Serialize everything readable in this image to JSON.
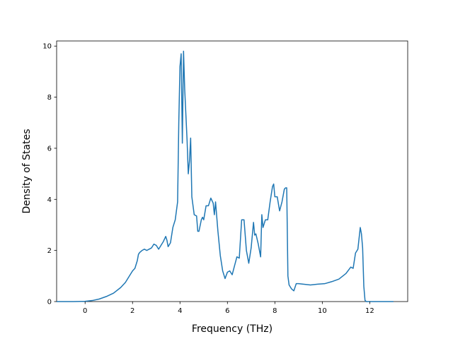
{
  "chart_data": {
    "type": "line",
    "title": "",
    "xlabel": "Frequency (THz)",
    "ylabel": "Density of States",
    "xlim": [
      -1.2,
      13.6
    ],
    "ylim": [
      0,
      10.2
    ],
    "xticks": [
      0,
      2,
      4,
      6,
      8,
      10,
      12
    ],
    "yticks": [
      0,
      2,
      4,
      6,
      8,
      10
    ],
    "xtick_labels": [
      "0",
      "2",
      "4",
      "6",
      "8",
      "10",
      "12"
    ],
    "ytick_labels": [
      "0",
      "2",
      "4",
      "6",
      "8",
      "10"
    ],
    "grid": false,
    "legend": "none",
    "line_color": "#1f77b4",
    "series": [
      {
        "x": [
          -1.2,
          -0.5,
          0.0,
          0.3,
          0.6,
          0.9,
          1.2,
          1.5,
          1.7,
          1.9,
          2.0,
          2.1,
          2.2,
          2.25,
          2.3,
          2.4,
          2.5,
          2.6,
          2.7,
          2.8,
          2.9,
          3.0,
          3.1,
          3.2,
          3.3,
          3.4,
          3.45,
          3.5,
          3.6,
          3.7,
          3.8,
          3.9,
          3.95,
          4.0,
          4.05,
          4.1,
          4.15,
          4.2,
          4.3,
          4.35,
          4.4,
          4.45,
          4.5,
          4.6,
          4.7,
          4.75,
          4.8,
          4.9,
          4.95,
          5.0,
          5.1,
          5.2,
          5.3,
          5.4,
          5.45,
          5.5,
          5.6,
          5.7,
          5.8,
          5.9,
          6.0,
          6.1,
          6.2,
          6.3,
          6.4,
          6.5,
          6.6,
          6.7,
          6.8,
          6.9,
          7.0,
          7.1,
          7.15,
          7.2,
          7.3,
          7.4,
          7.45,
          7.5,
          7.6,
          7.7,
          7.8,
          7.9,
          7.95,
          8.0,
          8.1,
          8.2,
          8.3,
          8.4,
          8.45,
          8.5,
          8.55,
          8.6,
          8.7,
          8.8,
          8.9,
          9.0,
          9.2,
          9.5,
          9.8,
          10.1,
          10.4,
          10.7,
          11.0,
          11.2,
          11.3,
          11.4,
          11.5,
          11.6,
          11.65,
          11.7,
          11.75,
          11.8,
          11.85,
          11.9,
          12.0,
          13.0
        ],
        "y": [
          0.0,
          0.0,
          0.01,
          0.04,
          0.1,
          0.2,
          0.33,
          0.55,
          0.75,
          1.05,
          1.2,
          1.3,
          1.6,
          1.85,
          1.92,
          2.0,
          2.05,
          2.0,
          2.05,
          2.1,
          2.25,
          2.2,
          2.05,
          2.2,
          2.35,
          2.55,
          2.4,
          2.15,
          2.3,
          2.9,
          3.2,
          3.9,
          7.0,
          9.2,
          9.7,
          6.2,
          9.8,
          8.3,
          6.3,
          5.0,
          5.5,
          6.4,
          4.1,
          3.4,
          3.35,
          2.75,
          2.75,
          3.2,
          3.3,
          3.2,
          3.75,
          3.75,
          4.05,
          3.85,
          3.4,
          3.9,
          2.75,
          1.8,
          1.2,
          0.9,
          1.15,
          1.2,
          1.05,
          1.4,
          1.75,
          1.7,
          3.2,
          3.2,
          2.0,
          1.5,
          2.1,
          3.1,
          2.6,
          2.65,
          2.25,
          1.75,
          3.4,
          2.9,
          3.2,
          3.2,
          3.9,
          4.5,
          4.6,
          4.1,
          4.1,
          3.55,
          3.9,
          4.4,
          4.45,
          4.45,
          1.0,
          0.65,
          0.5,
          0.42,
          0.7,
          0.7,
          0.68,
          0.65,
          0.68,
          0.7,
          0.78,
          0.88,
          1.1,
          1.35,
          1.3,
          1.9,
          2.05,
          2.9,
          2.65,
          2.1,
          0.6,
          0.05,
          0.0,
          0.0,
          0.0,
          0.0
        ]
      }
    ]
  }
}
